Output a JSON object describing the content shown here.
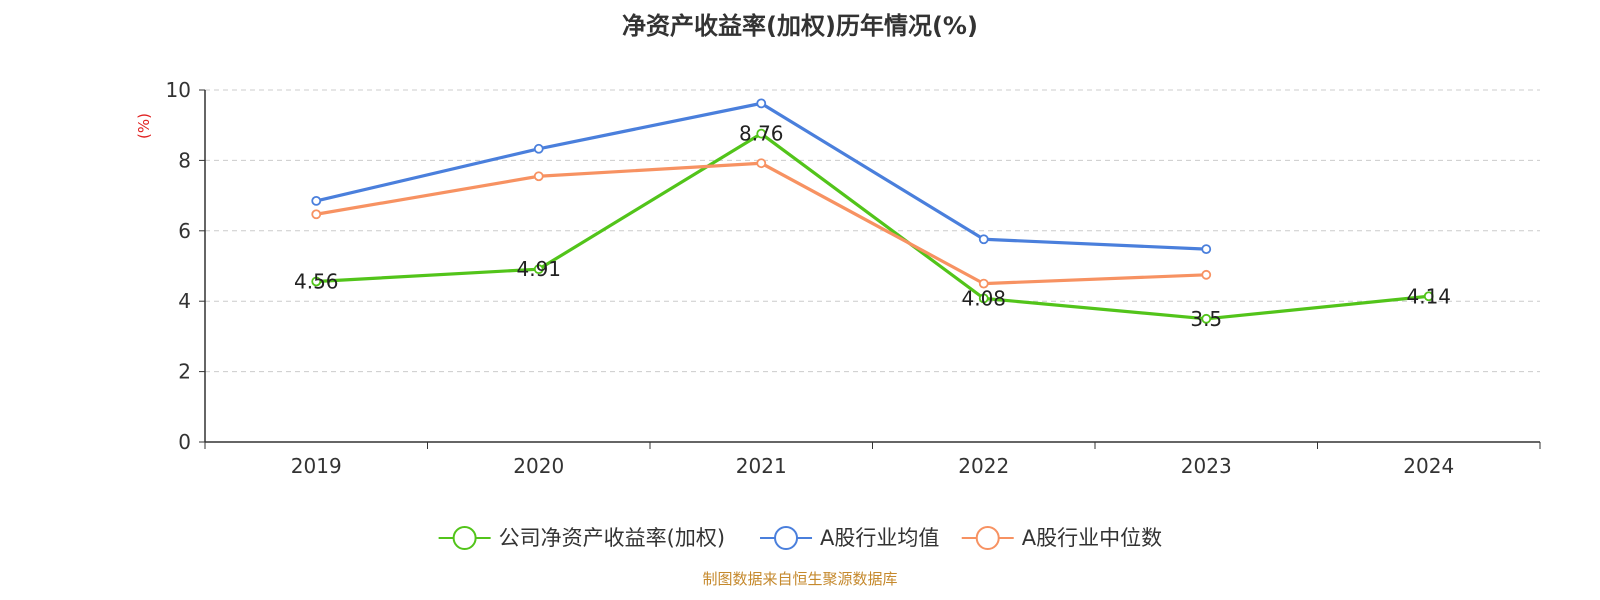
{
  "chart_data": {
    "type": "line",
    "title": "净资产收益率(加权)历年情况(%)",
    "ylabel": "(%)",
    "xlabel": "",
    "categories": [
      "2019",
      "2020",
      "2021",
      "2022",
      "2023",
      "2024"
    ],
    "ylim": [
      0,
      10
    ],
    "yticks": [
      0,
      2,
      4,
      6,
      8,
      10
    ],
    "grid": true,
    "legend_position": "bottom",
    "series": [
      {
        "name": "公司净资产收益率(加权)",
        "color": "#52c41a",
        "values": [
          4.56,
          4.91,
          8.76,
          4.08,
          3.5,
          4.14
        ],
        "labels": [
          "4.56",
          "4.91",
          "8.76",
          "4.08",
          "3.5",
          "4.14"
        ]
      },
      {
        "name": "A股行业均值",
        "color": "#4a7fdc",
        "values": [
          6.85,
          8.33,
          9.62,
          5.76,
          5.48,
          null
        ]
      },
      {
        "name": "A股行业中位数",
        "color": "#f79262",
        "values": [
          6.47,
          7.55,
          7.92,
          4.5,
          4.75,
          null
        ]
      }
    ],
    "source": "制图数据来自恒生聚源数据库"
  }
}
